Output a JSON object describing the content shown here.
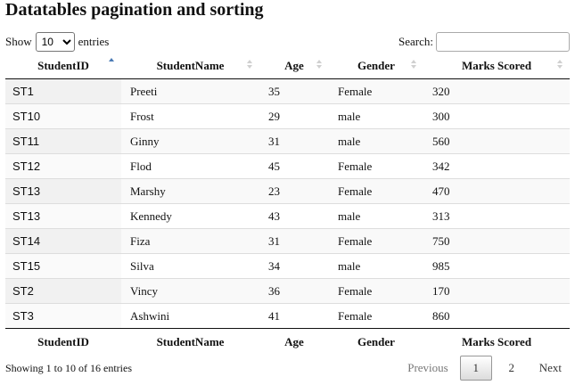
{
  "title": "Datatables pagination and sorting",
  "length": {
    "show_label": "Show",
    "value": "10",
    "entries_label": "entries"
  },
  "search": {
    "label": "Search:",
    "value": ""
  },
  "columns": [
    "StudentID",
    "StudentName",
    "Age",
    "Gender",
    "Marks Scored"
  ],
  "rows": [
    [
      "ST1",
      "Preeti",
      "35",
      "Female",
      "320"
    ],
    [
      "ST10",
      "Frost",
      "29",
      "male",
      "300"
    ],
    [
      "ST11",
      "Ginny",
      "31",
      "male",
      "560"
    ],
    [
      "ST12",
      "Flod",
      "45",
      "Female",
      "342"
    ],
    [
      "ST13",
      "Marshy",
      "23",
      "Female",
      "470"
    ],
    [
      "ST13",
      "Kennedy",
      "43",
      "male",
      "313"
    ],
    [
      "ST14",
      "Fiza",
      "31",
      "Female",
      "750"
    ],
    [
      "ST15",
      "Silva",
      "34",
      "male",
      "985"
    ],
    [
      "ST2",
      "Vincy",
      "36",
      "Female",
      "170"
    ],
    [
      "ST3",
      "Ashwini",
      "41",
      "Female",
      "860"
    ]
  ],
  "sort_icon": "sort-both-icon",
  "sorted_column_icon": "sort-asc-icon",
  "accent_color": "#4a7ab5",
  "info": "Showing 1 to 10 of 16 entries",
  "pagination": {
    "previous": "Previous",
    "pages": [
      "1",
      "2"
    ],
    "current": "1",
    "next": "Next"
  }
}
